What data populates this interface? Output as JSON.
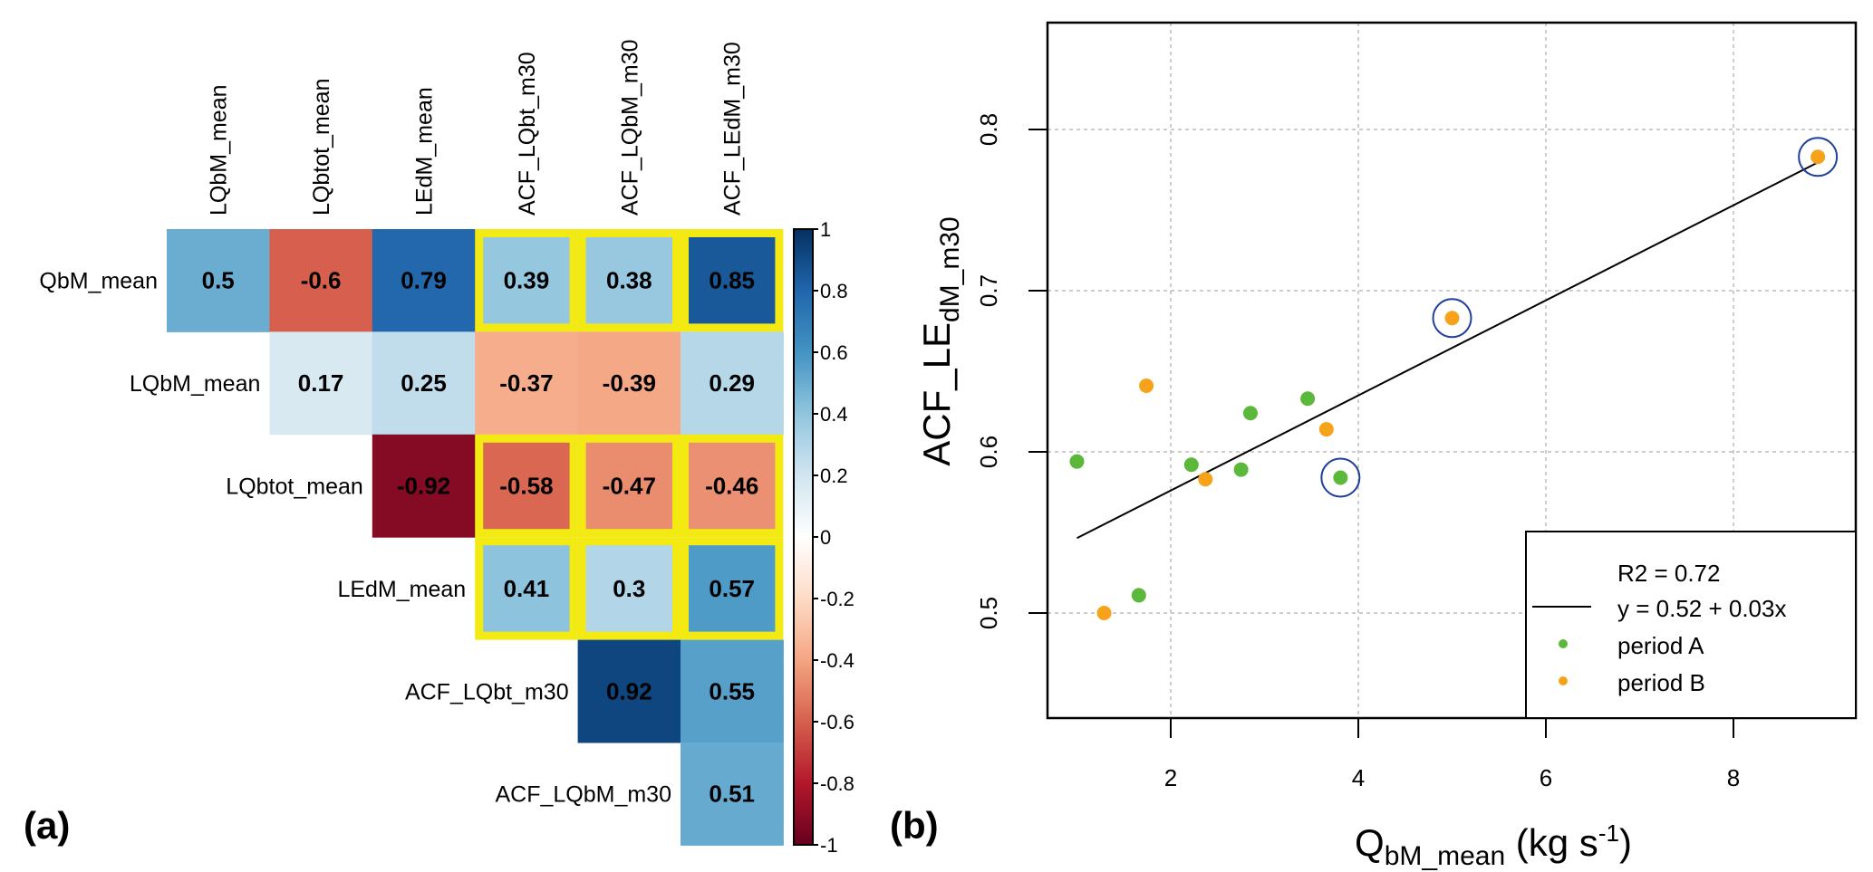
{
  "chart_data": [
    {
      "panel": "(a)",
      "type": "heatmap",
      "title": "",
      "row_labels": [
        "QbM_mean",
        "LQbM_mean",
        "LQbtot_mean",
        "LEdM_mean",
        "ACF_LQbt_m30",
        "ACF_LQbM_m30"
      ],
      "col_labels": [
        "LQbM_mean",
        "LQbtot_mean",
        "LEdM_mean",
        "ACF_LQbt_m30",
        "ACF_LQbM_m30",
        "ACF_LEdM_m30"
      ],
      "matrix_upper": [
        [
          0.5,
          -0.6,
          0.79,
          0.39,
          0.38,
          0.85
        ],
        [
          null,
          0.17,
          0.25,
          -0.37,
          -0.39,
          0.29
        ],
        [
          null,
          null,
          -0.92,
          -0.58,
          -0.47,
          -0.46
        ],
        [
          null,
          null,
          null,
          0.41,
          0.3,
          0.57
        ],
        [
          null,
          null,
          null,
          null,
          0.92,
          0.55
        ],
        [
          null,
          null,
          null,
          null,
          null,
          0.51
        ]
      ],
      "cell_labels": [
        [
          "0.5",
          "-0.6",
          "0.79",
          "0.39",
          "0.38",
          "0.85"
        ],
        [
          "",
          "0.17",
          "0.25",
          "-0.37",
          "-0.39",
          "0.29"
        ],
        [
          "",
          "",
          "-0.92",
          "-0.58",
          "-0.47",
          "-0.46"
        ],
        [
          "",
          "",
          "",
          "0.41",
          "0.3",
          "0.57"
        ],
        [
          "",
          "",
          "",
          "",
          "0.92",
          "0.55"
        ],
        [
          "",
          "",
          "",
          "",
          "",
          "0.51"
        ]
      ],
      "highlighted_cells": [
        [
          0,
          3
        ],
        [
          0,
          4
        ],
        [
          0,
          5
        ],
        [
          2,
          3
        ],
        [
          2,
          4
        ],
        [
          2,
          5
        ],
        [
          3,
          3
        ],
        [
          3,
          4
        ],
        [
          3,
          5
        ]
      ],
      "highlight_color": "#f2ea12",
      "colorbar": {
        "range": [
          -1,
          1
        ],
        "ticks": [
          "1",
          "0.8",
          "0.6",
          "0.4",
          "0.2",
          "0",
          "-0.2",
          "-0.4",
          "-0.6",
          "-0.8",
          "-1"
        ],
        "tick_values": [
          1,
          0.8,
          0.6,
          0.4,
          0.2,
          0,
          -0.2,
          -0.4,
          -0.6,
          -0.8,
          -1
        ],
        "palette": [
          "#67001f",
          "#b2182b",
          "#d6604d",
          "#f4a582",
          "#fddbc7",
          "#ffffff",
          "#d1e5f0",
          "#92c5de",
          "#4393c3",
          "#2166ac",
          "#053061"
        ]
      }
    },
    {
      "panel": "(b)",
      "type": "scatter",
      "title": "",
      "xlabel_main": "Q",
      "xlabel_sub": "bM_mean",
      "xlabel_unit": " (kg s",
      "xlabel_sup": "-1",
      "xlabel_close": ")",
      "ylabel_main": "ACF_LE",
      "ylabel_sub": "dM_m30",
      "xlim": [
        0.9,
        9.5
      ],
      "ylim": [
        0.44,
        0.87
      ],
      "x_ticks": [
        2,
        4,
        6,
        8
      ],
      "x_tick_labels": [
        "2",
        "4",
        "6",
        "8"
      ],
      "y_ticks": [
        0.5,
        0.6,
        0.7,
        0.8
      ],
      "y_tick_labels": [
        "0.5",
        "0.6",
        "0.7",
        "0.8"
      ],
      "grid": true,
      "series": [
        {
          "name": "period A",
          "color": "#5cb83a",
          "points": [
            {
              "x": 1.0,
              "y": 0.594
            },
            {
              "x": 1.66,
              "y": 0.511
            },
            {
              "x": 2.22,
              "y": 0.592
            },
            {
              "x": 2.75,
              "y": 0.589
            },
            {
              "x": 2.85,
              "y": 0.624
            },
            {
              "x": 3.46,
              "y": 0.633
            },
            {
              "x": 3.81,
              "y": 0.584,
              "circled": true
            }
          ]
        },
        {
          "name": "period B",
          "color": "#f7a21b",
          "points": [
            {
              "x": 1.29,
              "y": 0.5
            },
            {
              "x": 1.74,
              "y": 0.641
            },
            {
              "x": 2.37,
              "y": 0.583
            },
            {
              "x": 3.66,
              "y": 0.614
            },
            {
              "x": 5.0,
              "y": 0.683,
              "circled": true
            },
            {
              "x": 8.9,
              "y": 0.783,
              "circled": true
            }
          ]
        }
      ],
      "circle_color": "#1f3f9e",
      "fit_line": {
        "intercept": 0.517,
        "slope": 0.0295,
        "x_range": [
          1.0,
          8.9
        ]
      },
      "legend": {
        "position": "bottom-right",
        "entries": [
          {
            "label": "R2 =  0.72",
            "symbol": "none"
          },
          {
            "label": "y = 0.52 + 0.03x",
            "symbol": "line"
          },
          {
            "label": "period A",
            "symbol": "dot",
            "color": "#5cb83a"
          },
          {
            "label": "period B",
            "symbol": "dot",
            "color": "#f7a21b"
          }
        ]
      }
    }
  ]
}
